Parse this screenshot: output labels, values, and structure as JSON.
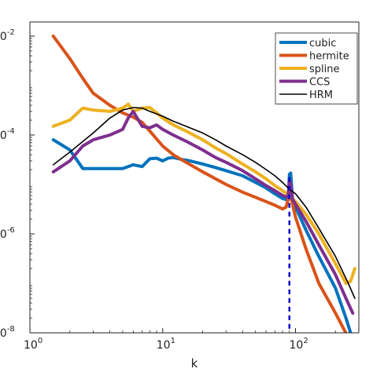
{
  "chart_data": {
    "type": "line",
    "title": "",
    "xlabel": "k",
    "ylabel": "",
    "xscale": "log",
    "yscale": "log",
    "xlim": [
      1,
      300
    ],
    "ylim": [
      1e-08,
      0.01
    ],
    "grid": false,
    "legend_position": "top-right",
    "x_ticks": [
      {
        "value": 1,
        "base": "10",
        "exp": "0"
      },
      {
        "value": 10,
        "base": "10",
        "exp": "1"
      },
      {
        "value": 100,
        "base": "10",
        "exp": "2"
      }
    ],
    "y_ticks": [
      {
        "value": 0.01,
        "base": "10",
        "exp": "-2"
      },
      {
        "value": 0.0001,
        "base": "10",
        "exp": "-4"
      },
      {
        "value": 1e-06,
        "base": "10",
        "exp": "-6"
      },
      {
        "value": 1e-08,
        "base": "10",
        "exp": "-8"
      }
    ],
    "series": [
      {
        "name": "cubic",
        "color": "#0072BD",
        "width": 4,
        "x": [
          1.5,
          2,
          2.5,
          3,
          4,
          5,
          6,
          7,
          8,
          9,
          10,
          11,
          12,
          14,
          16,
          20,
          25,
          30,
          40,
          50,
          60,
          70,
          80,
          88,
          90,
          92,
          95,
          100,
          120,
          150,
          200,
          240,
          260
        ],
        "y": [
          8e-05,
          5e-05,
          2.1e-05,
          2.1e-05,
          2.1e-05,
          2.1e-05,
          2.5e-05,
          2.3e-05,
          3.3e-05,
          3.4e-05,
          3e-05,
          3.4e-05,
          3.5e-05,
          3.2e-05,
          3e-05,
          2.6e-05,
          2.2e-05,
          1.9e-05,
          1.5e-05,
          1.1e-05,
          8.5e-06,
          6.5e-06,
          5.2e-06,
          4.8e-06,
          1.6e-05,
          1.7e-05,
          5e-06,
          3.5e-06,
          1.2e-06,
          3.5e-07,
          8e-08,
          2e-08,
          1e-08
        ]
      },
      {
        "name": "hermite",
        "color": "#D95319",
        "width": 4,
        "x": [
          1.5,
          2,
          2.5,
          3,
          4,
          5,
          6,
          7,
          8,
          10,
          12,
          15,
          20,
          25,
          30,
          40,
          50,
          60,
          70,
          80,
          85,
          88,
          90,
          95,
          100,
          120,
          150,
          200,
          250,
          280
        ],
        "y": [
          0.01,
          0.0035,
          0.0014,
          0.0007,
          0.0004,
          0.00028,
          0.00023,
          0.00018,
          0.00012,
          6e-05,
          4e-05,
          2.8e-05,
          1.8e-05,
          1.3e-05,
          1e-05,
          7e-06,
          5.5e-06,
          4.5e-06,
          3.8e-06,
          3.2e-06,
          3.5e-06,
          5e-06,
          8e-06,
          4e-06,
          2.2e-06,
          5e-07,
          1e-07,
          2.5e-08,
          8e-09,
          5e-09
        ]
      },
      {
        "name": "spline",
        "color": "#EDB120",
        "width": 4,
        "x": [
          1.5,
          2,
          2.5,
          3,
          4,
          5,
          5.5,
          6,
          7,
          8,
          9,
          10,
          12,
          15,
          20,
          25,
          30,
          40,
          50,
          60,
          70,
          80,
          90,
          100,
          120,
          150,
          200,
          240,
          260,
          280
        ],
        "y": [
          0.00015,
          0.0002,
          0.00035,
          0.00032,
          0.0003,
          0.00035,
          0.00042,
          0.0003,
          0.00035,
          0.00036,
          0.00028,
          0.00022,
          0.00016,
          0.00012,
          8e-05,
          5.5e-05,
          4.2e-05,
          2.6e-05,
          1.8e-05,
          1.3e-05,
          9.5e-06,
          7.5e-06,
          6e-06,
          4.5e-06,
          2.5e-06,
          1e-06,
          2.5e-07,
          1e-07,
          1.1e-07,
          2e-07
        ]
      },
      {
        "name": "CCS",
        "color": "#7E2F8E",
        "width": 4,
        "x": [
          1.5,
          2,
          2.5,
          3,
          4,
          5,
          5.5,
          6,
          7,
          8,
          9,
          10,
          12,
          15,
          20,
          25,
          30,
          40,
          50,
          60,
          70,
          80,
          88,
          90,
          92,
          95,
          100,
          120,
          150,
          200,
          240,
          270
        ],
        "y": [
          1.8e-05,
          3e-05,
          6e-05,
          8e-05,
          0.0001,
          0.00013,
          0.00022,
          0.0003,
          0.00015,
          0.00014,
          0.00016,
          0.00013,
          0.0001,
          7.5e-05,
          5e-05,
          3.5e-05,
          2.8e-05,
          1.9e-05,
          1.3e-05,
          9.5e-06,
          7.5e-06,
          6e-06,
          5.5e-06,
          1.2e-05,
          1e-05,
          5e-06,
          4e-06,
          1.8e-06,
          6e-07,
          1.5e-07,
          5e-08,
          2.5e-08
        ]
      },
      {
        "name": "HRM",
        "color": "#000000",
        "width": 1.6,
        "x": [
          1.5,
          2,
          3,
          4,
          5,
          6,
          7,
          8,
          10,
          12,
          15,
          20,
          25,
          30,
          40,
          50,
          60,
          70,
          80,
          90,
          100,
          120,
          150,
          200,
          250,
          280
        ],
        "y": [
          2.5e-05,
          4.5e-05,
          0.00011,
          0.00022,
          0.00032,
          0.00036,
          0.00035,
          0.0003,
          0.00024,
          0.00019,
          0.00015,
          0.00011,
          8e-05,
          6e-05,
          4e-05,
          2.8e-05,
          2e-05,
          1.5e-05,
          1.1e-05,
          8e-06,
          6.5e-06,
          3.5e-06,
          1.3e-06,
          3.5e-07,
          1e-07,
          5e-08
        ]
      }
    ],
    "reference_line": {
      "x": 90,
      "color": "#0000CC",
      "style": "dashed"
    }
  }
}
